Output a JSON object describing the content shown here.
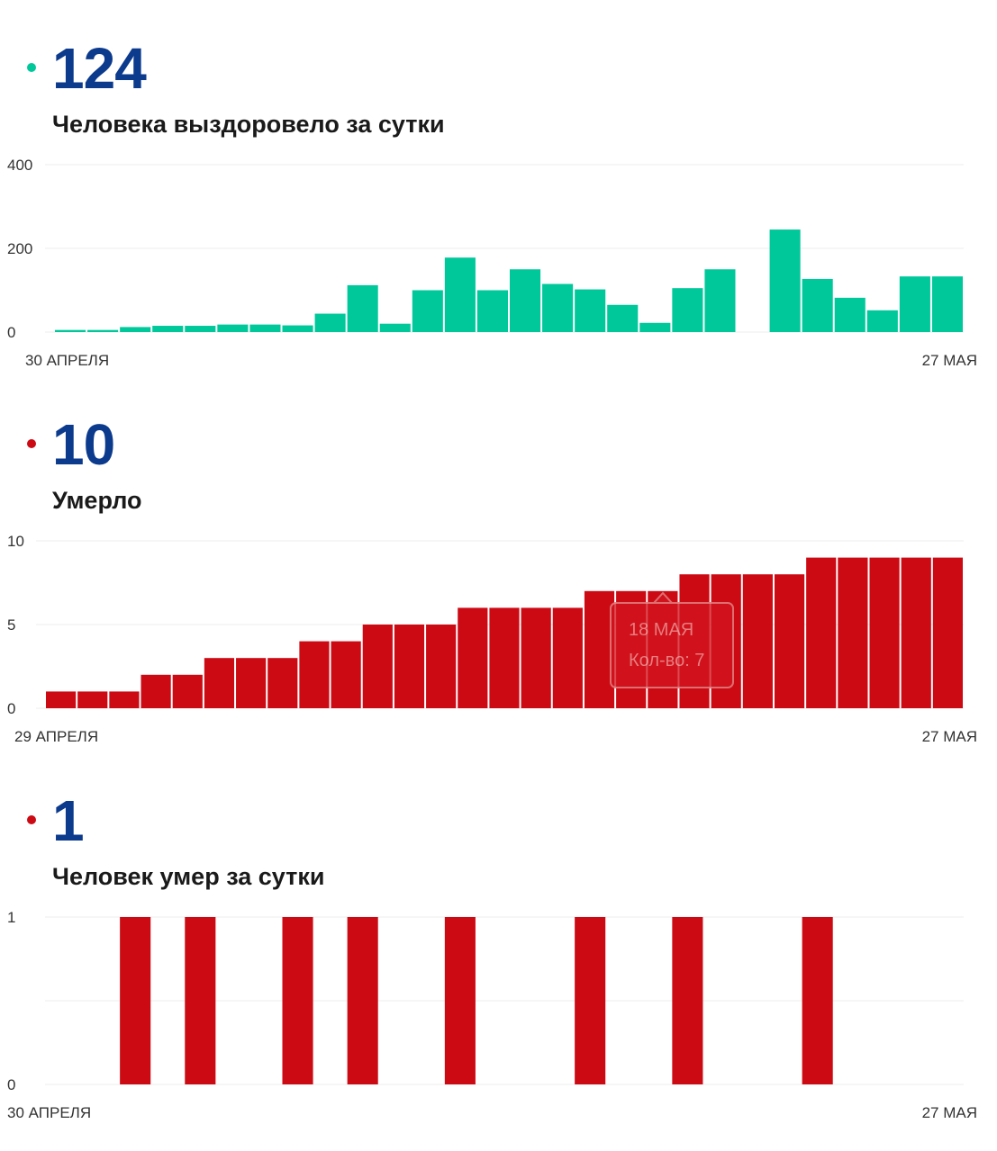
{
  "colors": {
    "recovered": "#00c89b",
    "deaths": "#cc0a14",
    "headline": "#0c3a8c",
    "grid": "#eeeeee"
  },
  "recovered": {
    "value": "124",
    "caption": "Человека выздоровело за сутки",
    "dot_icon": "dot-icon"
  },
  "deaths_total": {
    "value": "10",
    "caption": "Умерло",
    "dot_icon": "dot-icon",
    "tooltip": {
      "date": "18 МАЯ",
      "count": "Кол-во: 7"
    }
  },
  "deaths_daily": {
    "value": "1",
    "caption": "Человек умер за сутки",
    "dot_icon": "dot-icon"
  },
  "chart_data": [
    {
      "type": "bar",
      "color": "#00c89b",
      "x_start_label": "30 АПРЕЛЯ",
      "x_end_label": "27 МАЯ",
      "yticks": [
        "400",
        "200",
        "0"
      ],
      "ylim": [
        0,
        400
      ],
      "grid": true,
      "values": [
        5,
        5,
        12,
        15,
        15,
        18,
        18,
        16,
        44,
        112,
        20,
        100,
        178,
        100,
        150,
        115,
        102,
        65,
        22,
        105,
        150,
        0,
        245,
        127,
        82,
        52,
        133,
        133
      ]
    },
    {
      "type": "bar",
      "color": "#cc0a14",
      "x_start_label": "29 АПРЕЛЯ",
      "x_end_label": "27 МАЯ",
      "yticks": [
        "10",
        "5",
        "0"
      ],
      "ylim": [
        0,
        10
      ],
      "grid": true,
      "values": [
        1,
        1,
        1,
        2,
        2,
        3,
        3,
        3,
        4,
        4,
        5,
        5,
        5,
        6,
        6,
        6,
        6,
        7,
        7,
        7,
        8,
        8,
        8,
        8,
        9,
        9,
        9,
        9,
        9
      ]
    },
    {
      "type": "bar",
      "color": "#cc0a14",
      "x_start_label": "30 АПРЕЛЯ",
      "x_end_label": "27 МАЯ",
      "yticks": [
        "1",
        "0"
      ],
      "ylim": [
        0,
        1
      ],
      "grid": true,
      "values": [
        0,
        0,
        1,
        0,
        1,
        0,
        0,
        1,
        0,
        1,
        0,
        0,
        1,
        0,
        0,
        0,
        1,
        0,
        0,
        1,
        0,
        0,
        0,
        1,
        0,
        0,
        0,
        0
      ]
    }
  ]
}
